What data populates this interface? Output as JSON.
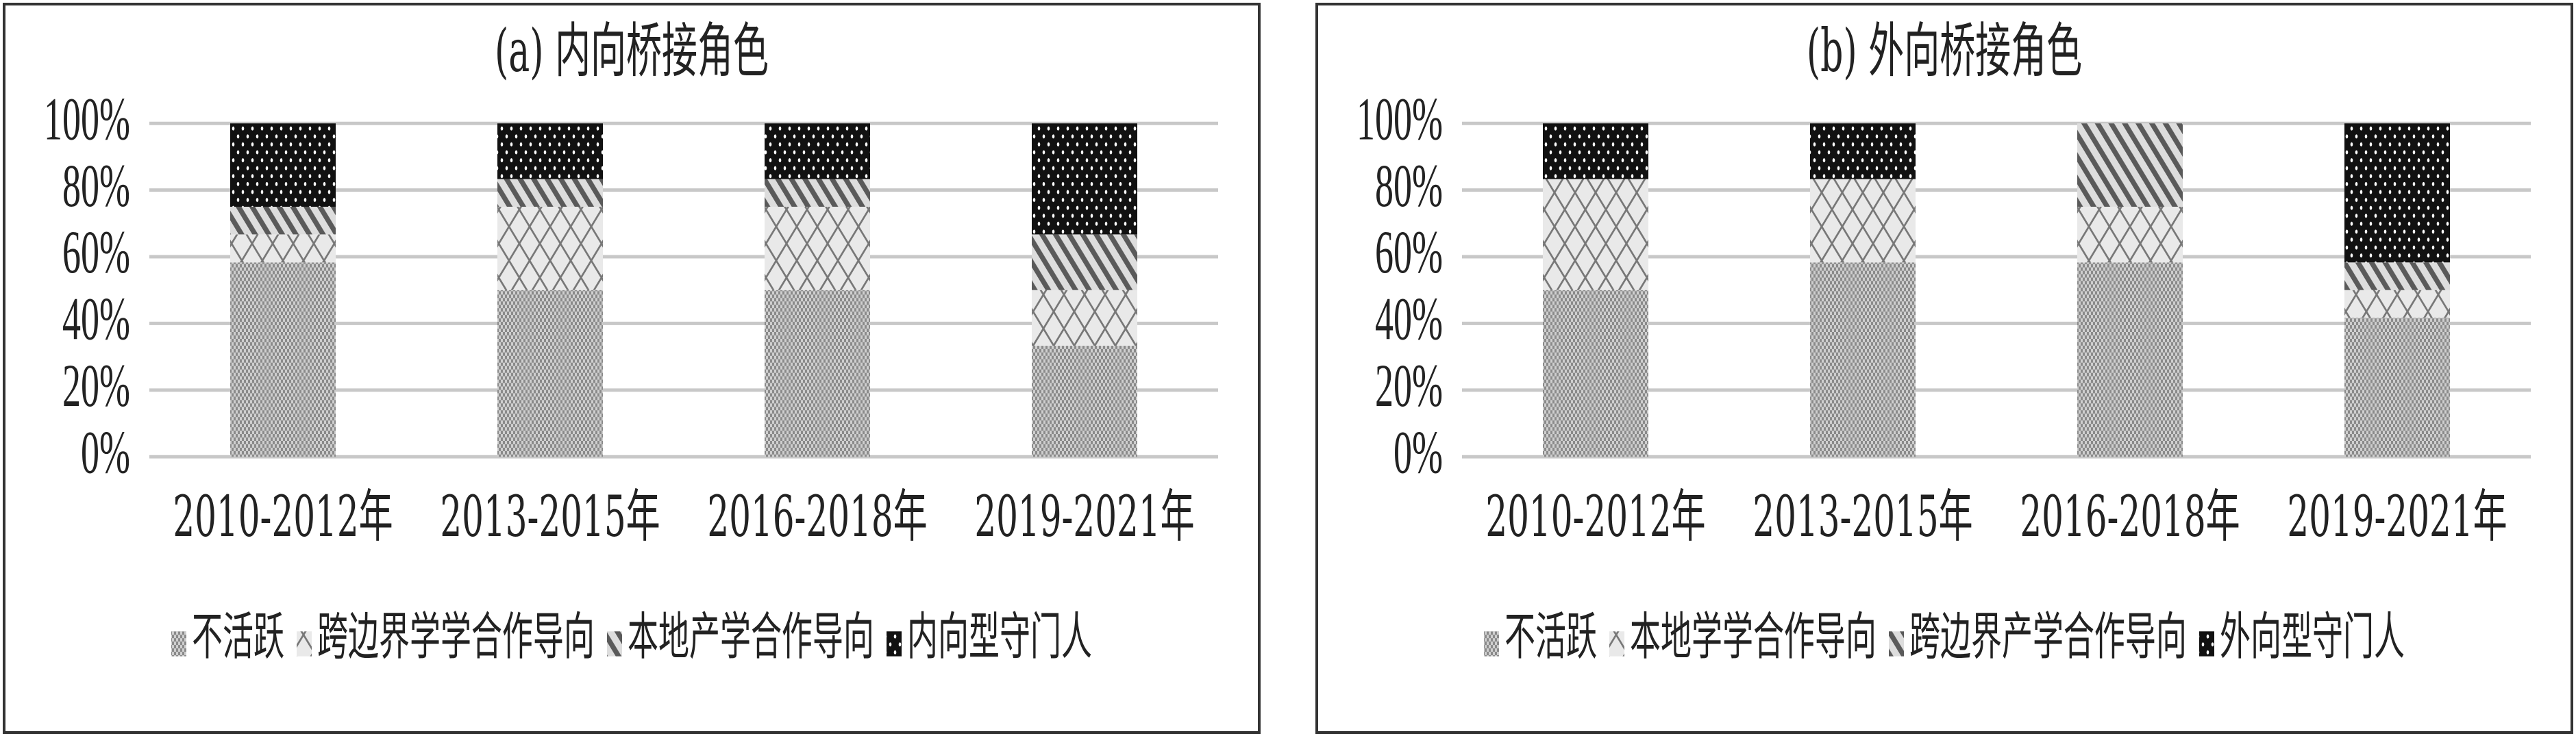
{
  "chart_data": [
    {
      "type": "bar",
      "stacked": true,
      "title": "(a) 内向桥接角色",
      "categories": [
        "2010-2012年",
        "2013-2015年",
        "2016-2018年",
        "2019-2021年"
      ],
      "y_ticks": [
        "0%",
        "20%",
        "40%",
        "60%",
        "80%",
        "100%"
      ],
      "ylim": [
        0,
        100
      ],
      "grid": true,
      "legend_position": "bottom",
      "series": [
        {
          "name": "不活跃",
          "pattern": "dots-fine",
          "values": [
            58.3,
            50.0,
            50.0,
            33.3
          ]
        },
        {
          "name": "跨边界学学合作导向",
          "pattern": "crosshatch",
          "values": [
            8.4,
            25.0,
            25.0,
            16.7
          ]
        },
        {
          "name": "本地产学合作导向",
          "pattern": "diagonal",
          "values": [
            8.3,
            8.3,
            8.3,
            16.7
          ]
        },
        {
          "name": "内向型守门人",
          "pattern": "black-dots",
          "values": [
            25.0,
            16.7,
            16.7,
            33.3
          ]
        }
      ]
    },
    {
      "type": "bar",
      "stacked": true,
      "title": "(b) 外向桥接角色",
      "categories": [
        "2010-2012年",
        "2013-2015年",
        "2016-2018年",
        "2019-2021年"
      ],
      "y_ticks": [
        "0%",
        "20%",
        "40%",
        "60%",
        "80%",
        "100%"
      ],
      "ylim": [
        0,
        100
      ],
      "grid": true,
      "legend_position": "bottom",
      "series": [
        {
          "name": "不活跃",
          "pattern": "dots-fine",
          "values": [
            50.0,
            58.3,
            58.3,
            41.7
          ]
        },
        {
          "name": "本地学学合作导向",
          "pattern": "crosshatch",
          "values": [
            33.3,
            25.0,
            16.7,
            8.3
          ]
        },
        {
          "name": "跨边界产学合作导向",
          "pattern": "diagonal",
          "values": [
            0,
            0,
            25.0,
            8.3
          ]
        },
        {
          "name": "外向型守门人",
          "pattern": "black-dots",
          "values": [
            16.7,
            16.7,
            0,
            41.7
          ]
        }
      ]
    }
  ]
}
